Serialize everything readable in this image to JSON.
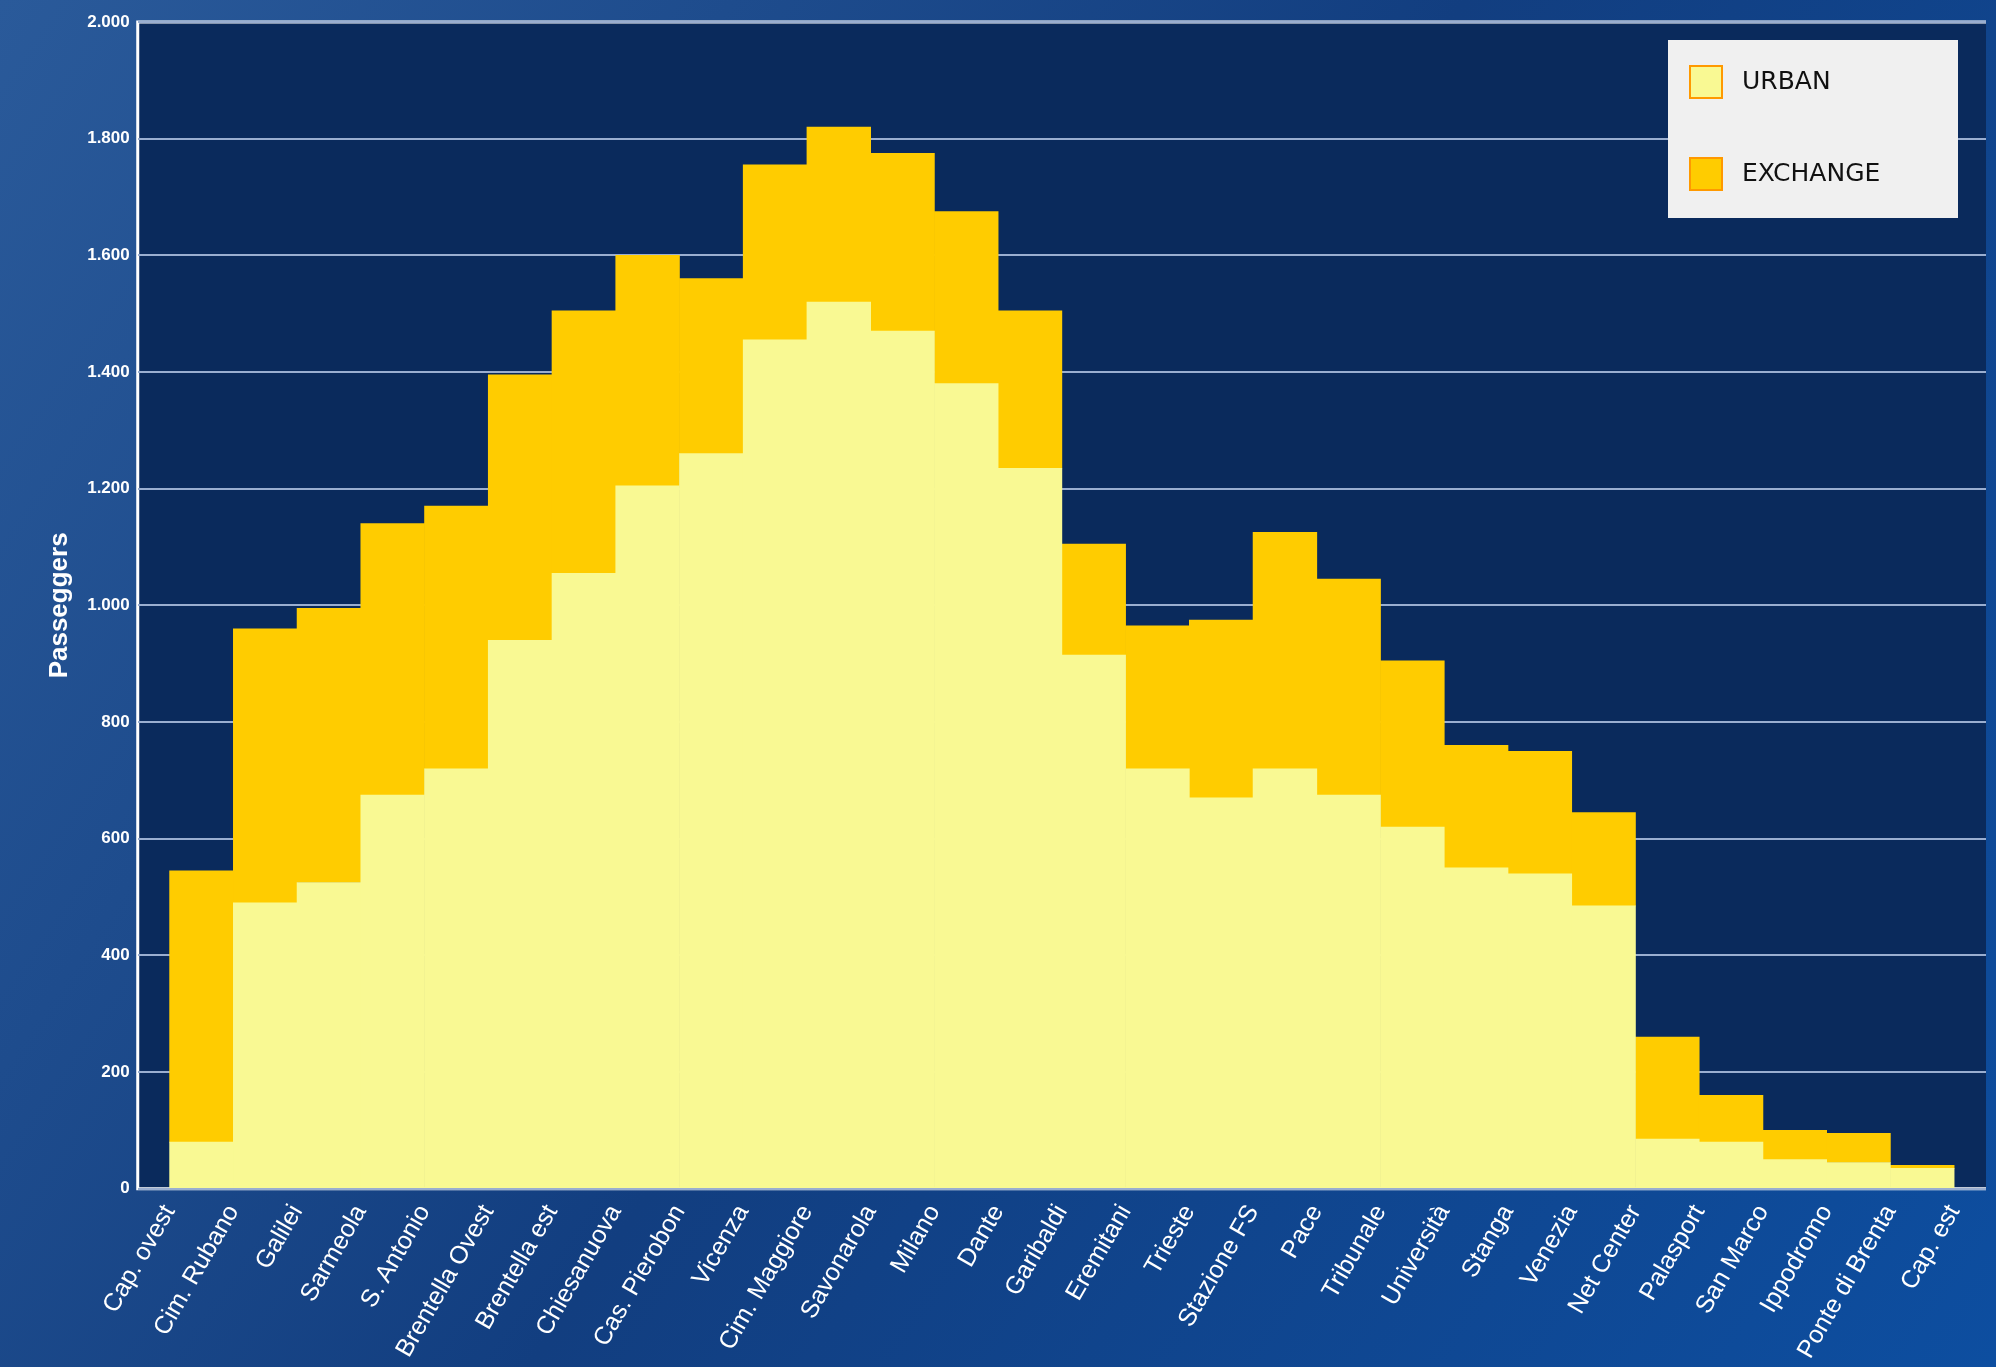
{
  "chart_data": {
    "type": "bar",
    "stacked": true,
    "ylabel": "Passeggers",
    "categories": [
      "Cap. ovest",
      "Cim. Rubano",
      "Galilei",
      "Sarmeola",
      "S. Antonio",
      "Brentella Ovest",
      "Brentella est",
      "Chiesanuova",
      "Cas. Pierobon",
      "Vicenza",
      "Cim. Maggiore",
      "Savonarola",
      "Milano",
      "Dante",
      "Garibaldi",
      "Eremitani",
      "Trieste",
      "Stazione FS",
      "Pace",
      "Tribunale",
      "Università",
      "Stanga",
      "Venezia",
      "Net Center",
      "Palasport",
      "San Marco",
      "Ippodromo",
      "Ponte di Brenta",
      "Cap. est"
    ],
    "series": [
      {
        "name": "URBAN",
        "color": "#f9f993",
        "values": [
          80,
          490,
          525,
          675,
          720,
          940,
          1055,
          1205,
          1260,
          1455,
          1520,
          1470,
          1380,
          1235,
          915,
          720,
          670,
          720,
          675,
          620,
          550,
          540,
          485,
          85,
          80,
          50,
          45,
          35,
          null
        ]
      },
      {
        "name": "EXCHANGE",
        "color": "#ffcc00",
        "values": [
          465,
          470,
          470,
          465,
          450,
          455,
          450,
          395,
          300,
          300,
          300,
          305,
          295,
          270,
          190,
          245,
          305,
          405,
          370,
          285,
          210,
          210,
          160,
          175,
          80,
          50,
          50,
          5,
          null
        ]
      }
    ],
    "ylim": [
      0,
      2000
    ],
    "yticks": [
      {
        "value": 0,
        "label": "0"
      },
      {
        "value": 200,
        "label": "200"
      },
      {
        "value": 400,
        "label": "400"
      },
      {
        "value": 600,
        "label": "600"
      },
      {
        "value": 800,
        "label": "800"
      },
      {
        "value": 1000,
        "label": "1.000"
      },
      {
        "value": 1200,
        "label": "1.200"
      },
      {
        "value": 1400,
        "label": "1.400"
      },
      {
        "value": 1600,
        "label": "1.600"
      },
      {
        "value": 1800,
        "label": "1.800"
      },
      {
        "value": 2000,
        "label": "2.000"
      }
    ],
    "grid": "y",
    "legend": "top right"
  }
}
